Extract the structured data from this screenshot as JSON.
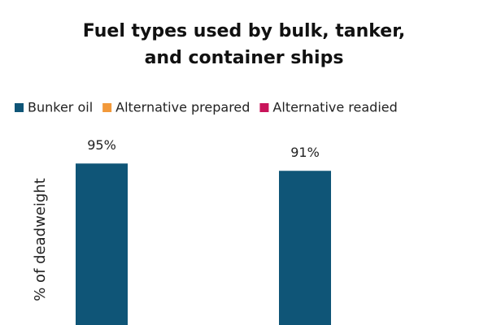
{
  "chart_data": {
    "type": "bar",
    "title": "Fuel types used by bulk, tanker, and container ships",
    "y_label": "% of deadweight",
    "categories": [
      null,
      null
    ],
    "series": [
      {
        "name": "Bunker oil",
        "color": "#0f5577",
        "values": [
          95,
          91
        ],
        "value_labels": [
          "95%",
          "91%"
        ]
      },
      {
        "name": "Alternative prepared",
        "color": "#f2993a",
        "values": [
          null,
          null
        ]
      },
      {
        "name": "Alternative readied",
        "color": "#c8145a",
        "values": [
          null,
          null
        ]
      }
    ],
    "ylim": [
      0,
      100
    ]
  }
}
